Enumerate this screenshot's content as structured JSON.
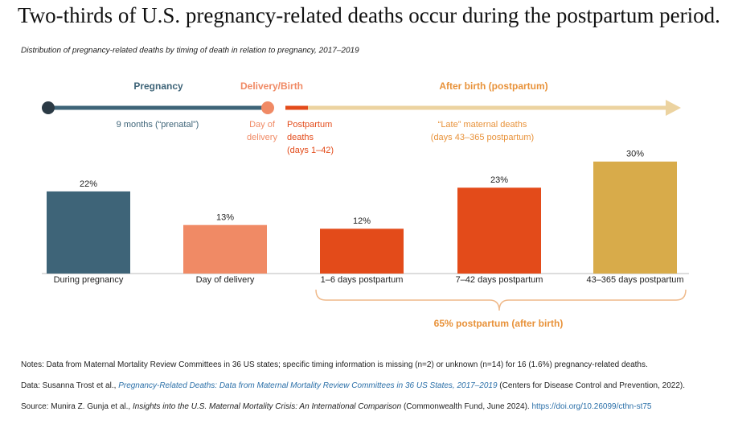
{
  "chart_data": {
    "type": "bar",
    "title": "Two-thirds of U.S. pregnancy-related deaths occur during the postpartum period.",
    "subtitle": "Distribution of pregnancy-related deaths by timing of death in relation to pregnancy, 2017–2019",
    "timeline": {
      "phases": [
        {
          "label": "Pregnancy",
          "color": "#3e6478",
          "note": [
            "9 months (“prenatal”)"
          ]
        },
        {
          "label": "Delivery/Birth",
          "color": "#f08a65",
          "note": [
            "Day of",
            "delivery"
          ]
        },
        {
          "label": "After birth (postpartum)",
          "color": "#e8923a",
          "note": [
            "“Late” maternal deaths",
            "(days 43–365 postpartum)"
          ]
        }
      ],
      "postpartum_note": [
        "Postpartum",
        "deaths",
        "(days 1–42)"
      ]
    },
    "categories": [
      "During pregnancy",
      "Day of delivery",
      "1–6 days postpartum",
      "7–42 days postpartum",
      "43–365 days postpartum"
    ],
    "values": [
      22,
      13,
      12,
      23,
      30
    ],
    "value_labels": [
      "22%",
      "13%",
      "12%",
      "23%",
      "30%"
    ],
    "colors": [
      "#3e6478",
      "#f08a65",
      "#e34b1a",
      "#e34b1a",
      "#d8ab4a"
    ],
    "brace_label": "65% postpartum (after birth)",
    "notes": [
      [
        "Notes: Data from Maternal Mortality Review Committees in 36 US states; specific timing information is missing (n=2) or unknown (n=14) for 16 (1.6%) pregnancy-related deaths."
      ],
      [
        "Data: Susanna Trost et al., ",
        "Pregnancy-Related Deaths: Data from Maternal Mortality Review Committees in 36 US States, 2017–2019",
        " (Centers for Disease Control and Prevention, 2022)."
      ],
      [
        "Source: Munira Z. Gunja et al., ",
        "Insights into the U.S. Maternal Mortality Crisis: An International Comparison",
        " (Commonwealth Fund, June 2024). ",
        "https://doi.org/10.26099/cthn-st75"
      ]
    ]
  }
}
